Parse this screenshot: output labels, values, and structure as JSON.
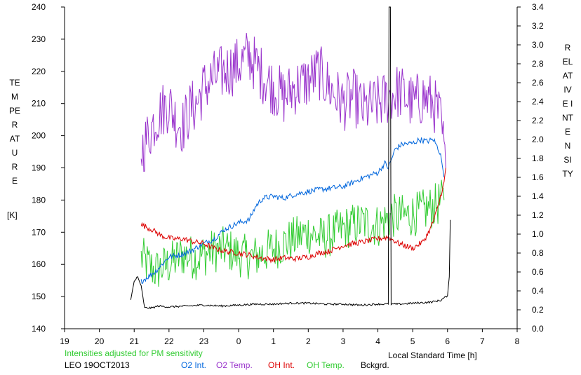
{
  "chart_data": {
    "type": "line",
    "xlabel": "Local Standard Time [h]",
    "ylabel_left": "TEMPERATURE",
    "ylabel_left_unit": "[K]",
    "ylabel_right": "RELATIVE INTENSITY",
    "note": "Intensities adjusted for PM sensitivity",
    "station_date": "LEO 19OCT2013",
    "x_range": [
      19,
      32
    ],
    "x_tick_values": [
      19,
      20,
      21,
      22,
      23,
      24,
      25,
      26,
      27,
      28,
      29,
      30,
      31,
      32
    ],
    "x_tick_labels": [
      "19",
      "20",
      "21",
      "22",
      "23",
      "0",
      "1",
      "2",
      "3",
      "4",
      "5",
      "6",
      "7",
      "8"
    ],
    "ylim_left": [
      140,
      240
    ],
    "y_ticks_left": [
      140,
      150,
      160,
      170,
      180,
      190,
      200,
      210,
      220,
      230,
      240
    ],
    "ylim_right": [
      0.0,
      3.4
    ],
    "y_ticks_right": [
      "0.0",
      "0.2",
      "0.4",
      "0.6",
      "0.8",
      "1.0",
      "1.2",
      "1.4",
      "1.6",
      "1.8",
      "2.0",
      "2.2",
      "2.4",
      "2.6",
      "2.8",
      "3.0",
      "3.2",
      "3.4"
    ],
    "grid": false,
    "legend_position": "bottom",
    "series": [
      {
        "name": "O2 Int.",
        "color": "#0066dd",
        "axis": "right",
        "noise": 0.03,
        "points": [
          [
            21.2,
            0.5
          ],
          [
            21.4,
            0.55
          ],
          [
            21.6,
            0.6
          ],
          [
            21.8,
            0.68
          ],
          [
            22.0,
            0.76
          ],
          [
            22.3,
            0.78
          ],
          [
            22.6,
            0.82
          ],
          [
            23.0,
            0.9
          ],
          [
            23.3,
            0.95
          ],
          [
            23.6,
            1.05
          ],
          [
            24.0,
            1.12
          ],
          [
            24.3,
            1.15
          ],
          [
            24.5,
            1.3
          ],
          [
            24.7,
            1.38
          ],
          [
            25.0,
            1.4
          ],
          [
            25.3,
            1.38
          ],
          [
            25.6,
            1.42
          ],
          [
            26.0,
            1.45
          ],
          [
            26.5,
            1.48
          ],
          [
            27.0,
            1.5
          ],
          [
            27.3,
            1.55
          ],
          [
            27.6,
            1.6
          ],
          [
            28.0,
            1.65
          ],
          [
            28.2,
            1.75
          ],
          [
            28.3,
            1.7
          ],
          [
            28.5,
            1.9
          ],
          [
            28.7,
            1.95
          ],
          [
            29.0,
            1.96
          ],
          [
            29.2,
            2.0
          ],
          [
            29.4,
            1.98
          ],
          [
            29.6,
            2.0
          ],
          [
            29.8,
            1.85
          ],
          [
            29.9,
            1.6
          ]
        ]
      },
      {
        "name": "O2 Temp.",
        "color": "#9933cc",
        "axis": "left",
        "noise": 9,
        "points": [
          [
            21.2,
            195
          ],
          [
            21.4,
            200
          ],
          [
            21.6,
            205
          ],
          [
            21.8,
            208
          ],
          [
            22.0,
            210
          ],
          [
            22.2,
            205
          ],
          [
            22.4,
            203
          ],
          [
            22.6,
            208
          ],
          [
            22.8,
            210
          ],
          [
            23.0,
            215
          ],
          [
            23.3,
            218
          ],
          [
            23.6,
            220
          ],
          [
            24.0,
            222
          ],
          [
            24.3,
            225
          ],
          [
            24.6,
            220
          ],
          [
            25.0,
            215
          ],
          [
            25.3,
            212
          ],
          [
            25.6,
            215
          ],
          [
            26.0,
            217
          ],
          [
            26.3,
            220
          ],
          [
            26.6,
            215
          ],
          [
            27.0,
            210
          ],
          [
            27.3,
            212
          ],
          [
            27.6,
            208
          ],
          [
            28.0,
            210
          ],
          [
            28.3,
            212
          ],
          [
            28.6,
            214
          ],
          [
            29.0,
            210
          ],
          [
            29.3,
            212
          ],
          [
            29.6,
            210
          ],
          [
            29.8,
            205
          ],
          [
            29.95,
            190
          ]
        ]
      },
      {
        "name": "OH Int.",
        "color": "#dd0000",
        "axis": "right",
        "noise": 0.03,
        "points": [
          [
            21.2,
            1.1
          ],
          [
            21.5,
            1.05
          ],
          [
            21.8,
            0.98
          ],
          [
            22.1,
            0.95
          ],
          [
            22.4,
            0.95
          ],
          [
            22.7,
            0.92
          ],
          [
            23.0,
            0.9
          ],
          [
            23.3,
            0.85
          ],
          [
            23.6,
            0.82
          ],
          [
            24.0,
            0.8
          ],
          [
            24.3,
            0.78
          ],
          [
            24.6,
            0.75
          ],
          [
            25.0,
            0.73
          ],
          [
            25.3,
            0.75
          ],
          [
            25.6,
            0.74
          ],
          [
            26.0,
            0.76
          ],
          [
            26.3,
            0.8
          ],
          [
            26.6,
            0.82
          ],
          [
            27.0,
            0.88
          ],
          [
            27.3,
            0.9
          ],
          [
            27.6,
            0.92
          ],
          [
            28.0,
            0.95
          ],
          [
            28.3,
            0.97
          ],
          [
            28.6,
            0.9
          ],
          [
            29.0,
            0.85
          ],
          [
            29.3,
            0.92
          ],
          [
            29.5,
            1.05
          ],
          [
            29.7,
            1.25
          ],
          [
            29.9,
            1.55
          ],
          [
            29.95,
            1.7
          ]
        ]
      },
      {
        "name": "OH Temp.",
        "color": "#33cc33",
        "axis": "left",
        "noise": 7,
        "points": [
          [
            21.2,
            162
          ],
          [
            21.6,
            158
          ],
          [
            22.0,
            160
          ],
          [
            22.4,
            163
          ],
          [
            22.8,
            162
          ],
          [
            23.2,
            164
          ],
          [
            23.6,
            165
          ],
          [
            24.0,
            163
          ],
          [
            24.4,
            162
          ],
          [
            24.8,
            164
          ],
          [
            25.2,
            166
          ],
          [
            25.6,
            168
          ],
          [
            26.0,
            170
          ],
          [
            26.4,
            168
          ],
          [
            26.8,
            170
          ],
          [
            27.2,
            172
          ],
          [
            27.6,
            173
          ],
          [
            28.0,
            172
          ],
          [
            28.4,
            175
          ],
          [
            28.8,
            175
          ],
          [
            29.2,
            176
          ],
          [
            29.6,
            178
          ],
          [
            29.9,
            180
          ]
        ]
      },
      {
        "name": "Bckgrd.",
        "color": "#000000",
        "axis": "right",
        "noise": 0.01,
        "points": [
          [
            20.9,
            0.3
          ],
          [
            21.0,
            0.5
          ],
          [
            21.1,
            0.55
          ],
          [
            21.2,
            0.45
          ],
          [
            21.3,
            0.22
          ],
          [
            21.5,
            0.22
          ],
          [
            21.7,
            0.24
          ],
          [
            22.0,
            0.23
          ],
          [
            22.5,
            0.24
          ],
          [
            23.0,
            0.25
          ],
          [
            23.5,
            0.24
          ],
          [
            24.0,
            0.25
          ],
          [
            24.5,
            0.26
          ],
          [
            25.0,
            0.26
          ],
          [
            25.5,
            0.27
          ],
          [
            26.0,
            0.27
          ],
          [
            26.5,
            0.26
          ],
          [
            27.0,
            0.26
          ],
          [
            27.5,
            0.25
          ],
          [
            28.0,
            0.26
          ],
          [
            28.3,
            0.26
          ],
          [
            28.32,
            3.4
          ],
          [
            28.36,
            3.4
          ],
          [
            28.38,
            0.26
          ],
          [
            28.6,
            0.26
          ],
          [
            29.0,
            0.27
          ],
          [
            29.5,
            0.28
          ],
          [
            29.8,
            0.3
          ],
          [
            30.0,
            0.35
          ],
          [
            30.05,
            0.55
          ],
          [
            30.08,
            1.15
          ]
        ]
      }
    ]
  }
}
